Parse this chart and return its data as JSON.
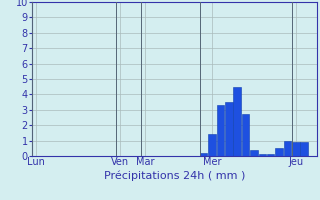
{
  "title": "Précipitations 24h ( mm )",
  "background_color": "#d4eef0",
  "bar_color": "#1e50e0",
  "bar_edge_color": "#1040b0",
  "ylim": [
    0,
    10
  ],
  "yticks": [
    0,
    1,
    2,
    3,
    4,
    5,
    6,
    7,
    8,
    9,
    10
  ],
  "grid_color": "#aabbbb",
  "bar_heights": [
    0,
    0,
    0,
    0,
    0,
    0,
    0,
    0,
    0,
    0,
    0,
    0,
    0,
    0,
    0,
    0,
    0,
    0,
    0,
    0,
    0.2,
    1.4,
    3.3,
    3.5,
    4.5,
    2.7,
    0.4,
    0.1,
    0.1,
    0.5,
    1.0,
    0.9,
    0.9,
    0
  ],
  "n_bars": 34,
  "day_labels": [
    "Lun",
    "Ven",
    "Mar",
    "Mer",
    "Jeu"
  ],
  "day_x_positions": [
    1,
    11,
    14,
    22,
    32
  ],
  "vline_positions": [
    0.5,
    10.5,
    13.5,
    20.5,
    31.5
  ],
  "title_color": "#3333aa",
  "tick_color": "#3333aa",
  "tick_fontsize": 7,
  "title_fontsize": 8
}
